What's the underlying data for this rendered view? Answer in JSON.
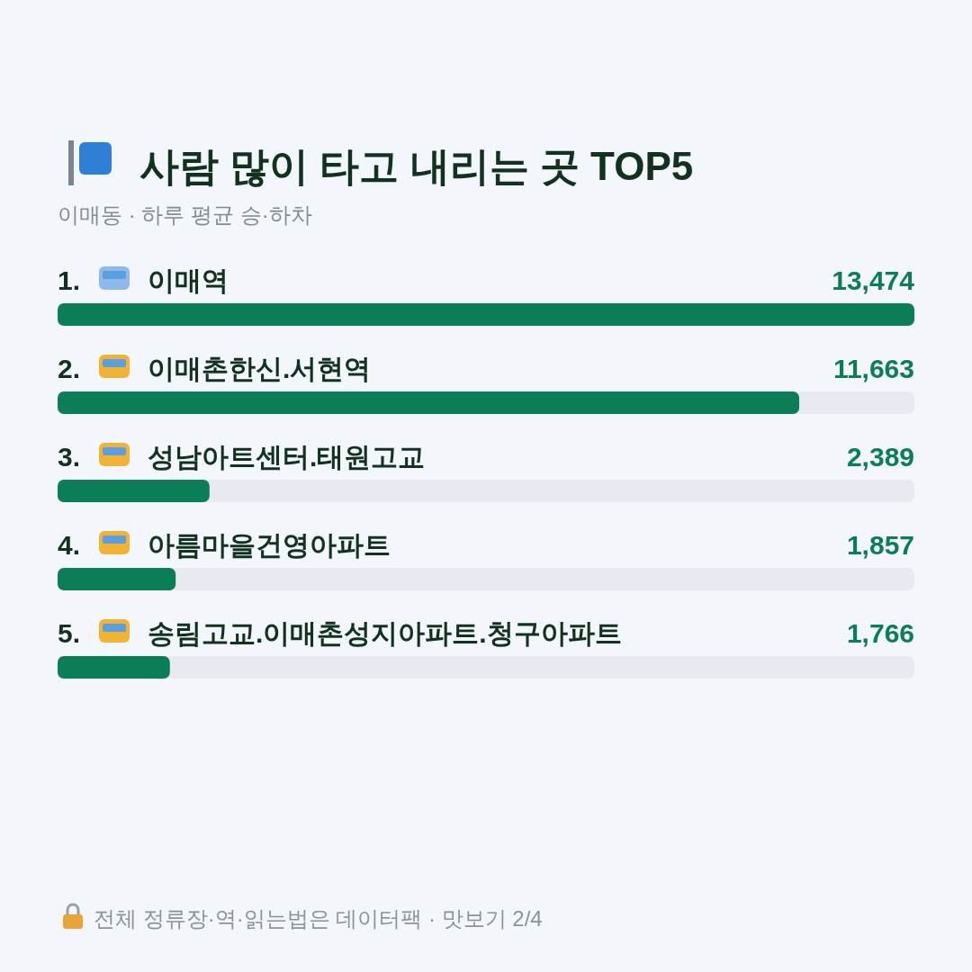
{
  "chart_data": {
    "type": "bar",
    "orientation": "horizontal",
    "title": "사람 많이 타고 내리는 곳 TOP5",
    "subtitle": "이매동 · 하루 평균 승·하차",
    "categories": [
      "1. 이매역",
      "2. 이매촌한신.서현역",
      "3. 성남아트센터.태원고교",
      "4. 아름마을건영아파트",
      "5. 송림고교.이매촌성지아파트.청구아파트"
    ],
    "values": [
      13474,
      11663,
      2389,
      1857,
      1766
    ],
    "value_labels": [
      "13,474",
      "11,663",
      "2,389",
      "1,857",
      "1,766"
    ],
    "color": "#0b7d57",
    "annotations": [
      "전체 정류장·역·읽는법은 데이터팩 · 맛보기 2/4"
    ]
  }
}
